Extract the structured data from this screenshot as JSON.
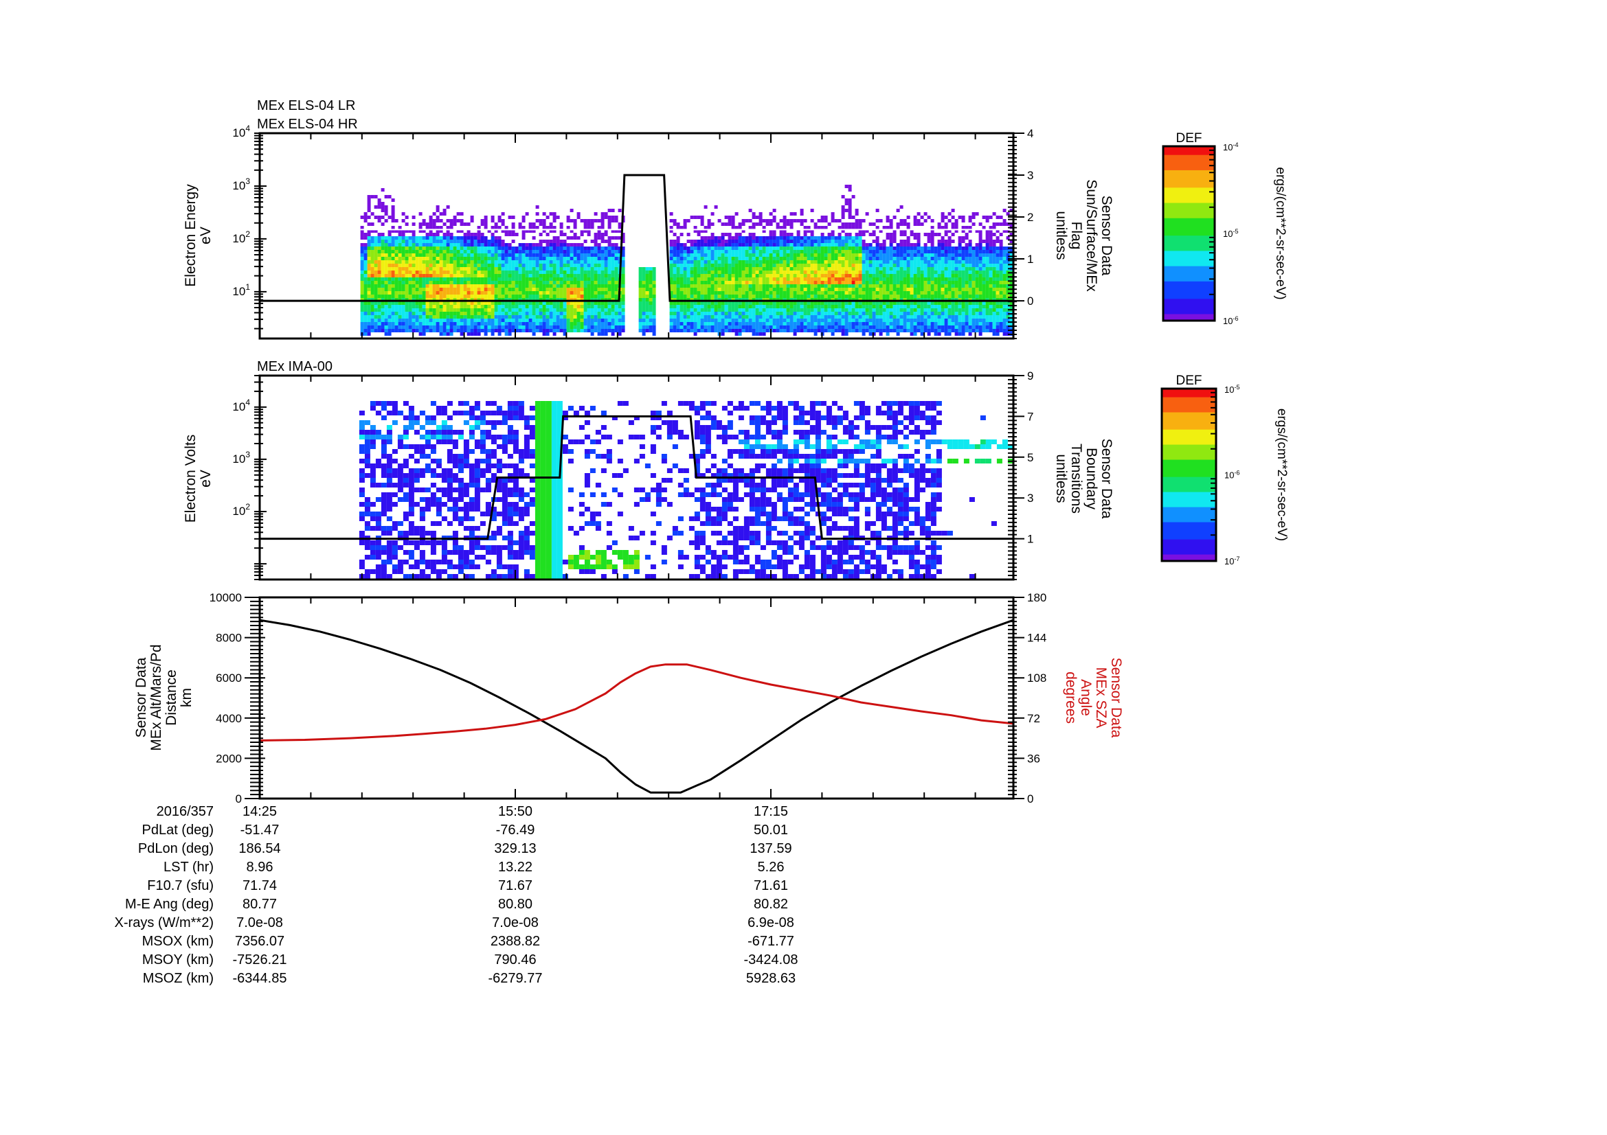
{
  "chart_data": [
    {
      "id": "els",
      "type": "heatmap",
      "title_lines": [
        "MEx ELS-04 LR",
        "MEx ELS-04 HR"
      ],
      "ylabel_lines": [
        "Electron Energy",
        "eV"
      ],
      "yscale": "log",
      "ylim": [
        1.3,
        10000
      ],
      "y_ticks": [
        {
          "exp": "4",
          "v": 10000
        },
        {
          "exp": "3",
          "v": 1000
        },
        {
          "exp": "2",
          "v": 100
        },
        {
          "exp": "1",
          "v": 10
        }
      ],
      "right_axis": {
        "label_lines": [
          "Sensor Data",
          "Sun/Surface/MEx",
          "Flag",
          "unitless"
        ],
        "ylim": [
          -0.9,
          4
        ],
        "ticks": [
          4,
          3,
          2,
          1,
          0
        ]
      },
      "flag_series": {
        "name": "Sun/Surface/MEx Flag",
        "x_min": [
          0,
          119.5,
          121.3,
          134.5,
          136.4,
          250.7
        ],
        "values": [
          0,
          0,
          3,
          3,
          0,
          0
        ]
      },
      "colorbar": {
        "title": "DEF",
        "units": "ergs/(cm**2-sr-sec-eV)",
        "min_label_exp": "-6",
        "mid_label_exp": "-5",
        "max_label_exp": "-4",
        "range": [
          1e-06,
          0.0001
        ]
      },
      "data_extent_min": [
        33.5,
        250.7
      ],
      "annotations": "High-flux red regions ~40-100 eV between ~15:10 and ~15:55 and again ~16:55-17:20; data gap near 16:25-16:40 (flag=3)"
    },
    {
      "id": "ima",
      "type": "heatmap",
      "title_lines": [
        "MEx IMA-00"
      ],
      "ylabel_lines": [
        "Electron Volts",
        "eV"
      ],
      "yscale": "log",
      "ylim": [
        5,
        40000
      ],
      "y_ticks": [
        {
          "exp": "4",
          "v": 10000
        },
        {
          "exp": "3",
          "v": 1000
        },
        {
          "exp": "2",
          "v": 100
        }
      ],
      "right_axis": {
        "label_lines": [
          "Sensor Data",
          "Boundary",
          "Transitions",
          "unitless"
        ],
        "ylim": [
          -1,
          9
        ],
        "ticks": [
          9,
          7,
          5,
          3,
          1
        ]
      },
      "boundary_series": {
        "name": "Boundary Transitions",
        "x_min": [
          0,
          75.8,
          79.0,
          99.8,
          100.9,
          143.3,
          145.2,
          184.7,
          187.0,
          250.7
        ],
        "values": [
          1,
          1,
          4,
          4,
          7,
          7,
          4,
          4,
          1,
          1
        ]
      },
      "colorbar": {
        "title": "DEF",
        "units": "ergs/(cm**2-sr-sec-eV)",
        "min_label_exp": "-7",
        "mid_label_exp": "-6",
        "max_label_exp": "-5",
        "range": [
          1e-07,
          1e-05
        ]
      },
      "data_extent_min": [
        33.1,
        225.1
      ],
      "annotations": "Intense green vertical band near 15:55-16:00; two narrow bands ~3000-5000 eV extend to end"
    },
    {
      "id": "orbit",
      "type": "line",
      "ylabel_lines": [
        "Sensor Data",
        "MEx Alt/Mars/Pd",
        "Distance",
        "km"
      ],
      "ylim": [
        0,
        10000
      ],
      "y_ticks": [
        0,
        2000,
        4000,
        6000,
        8000,
        10000
      ],
      "right_axis": {
        "label_lines": [
          "Sensor Data",
          "MEx SZA",
          "Angle",
          "degrees"
        ],
        "ylim": [
          0,
          180
        ],
        "ticks": [
          0,
          36,
          72,
          108,
          144,
          180
        ],
        "color": "#cc1111"
      },
      "x_unit": "minutes since 14:25 (2016/357)",
      "series": [
        {
          "name": "MEx Alt/Mars/Pd Distance (km)",
          "color": "#000000",
          "x_min": [
            0,
            10,
            20,
            30,
            40,
            50,
            60,
            70,
            80,
            90,
            100,
            110,
            115,
            120,
            125,
            130,
            140,
            150,
            160,
            170,
            180,
            190,
            200,
            210,
            220,
            230,
            240,
            250.7
          ],
          "values": [
            8870,
            8620,
            8300,
            7900,
            7450,
            6950,
            6400,
            5750,
            5000,
            4200,
            3350,
            2450,
            2000,
            1300,
            700,
            300,
            300,
            950,
            1900,
            2900,
            3900,
            4800,
            5600,
            6350,
            7050,
            7700,
            8300,
            8870
          ]
        },
        {
          "name": "MEx SZA Angle (deg)",
          "color": "#cc1111",
          "axis": "right",
          "x_min": [
            0,
            15,
            30,
            45,
            55,
            65,
            75,
            85,
            95,
            105,
            115,
            120,
            125,
            130,
            135,
            142,
            150,
            160,
            170,
            180,
            190,
            200,
            210,
            220,
            230,
            240,
            250.7
          ],
          "values": [
            52,
            52.5,
            54,
            56,
            58,
            60,
            62.5,
            66,
            71,
            80,
            94,
            104,
            112,
            118,
            120,
            120,
            115,
            108,
            102,
            97,
            92,
            86,
            82,
            78,
            74.5,
            70,
            67
          ]
        }
      ]
    }
  ],
  "x_axis": {
    "major_ticks": [
      {
        "label": "14:25",
        "min": 0
      },
      {
        "label": "15:50",
        "min": 85
      },
      {
        "label": "17:15",
        "min": 170
      }
    ],
    "minor_tick_step_min": 17,
    "range_min": [
      0,
      250.7
    ]
  },
  "ephemeris": {
    "header_label": "2016/357",
    "times": [
      "14:25",
      "15:50",
      "17:15"
    ],
    "rows": [
      {
        "label": "PdLat (deg)",
        "values": [
          "-51.47",
          "-76.49",
          "50.01"
        ]
      },
      {
        "label": "PdLon (deg)",
        "values": [
          "186.54",
          "329.13",
          "137.59"
        ]
      },
      {
        "label": "LST (hr)",
        "values": [
          "8.96",
          "13.22",
          "5.26"
        ]
      },
      {
        "label": "F10.7 (sfu)",
        "values": [
          "71.74",
          "71.67",
          "71.61"
        ]
      },
      {
        "label": "M-E Ang (deg)",
        "values": [
          "80.77",
          "80.80",
          "80.82"
        ]
      },
      {
        "label": "X-rays (W/m**2)",
        "values": [
          "7.0e-08",
          "7.0e-08",
          "6.9e-08"
        ]
      },
      {
        "label": "MSOX (km)",
        "values": [
          "7356.07",
          "2388.82",
          "-671.77"
        ]
      },
      {
        "label": "MSOY (km)",
        "values": [
          "-7526.21",
          "790.46",
          "-3424.08"
        ]
      },
      {
        "label": "MSOZ (km)",
        "values": [
          "-6344.85",
          "-6279.77",
          "5928.63"
        ]
      }
    ]
  },
  "colors": {
    "axis": "#000000",
    "sza": "#cc1111",
    "rainbow": [
      "#7a10e0",
      "#3010f0",
      "#1040ff",
      "#1090ff",
      "#10e8f0",
      "#10e070",
      "#20e020",
      "#90e810",
      "#f0f010",
      "#f8b010",
      "#f86010",
      "#f01010"
    ]
  }
}
